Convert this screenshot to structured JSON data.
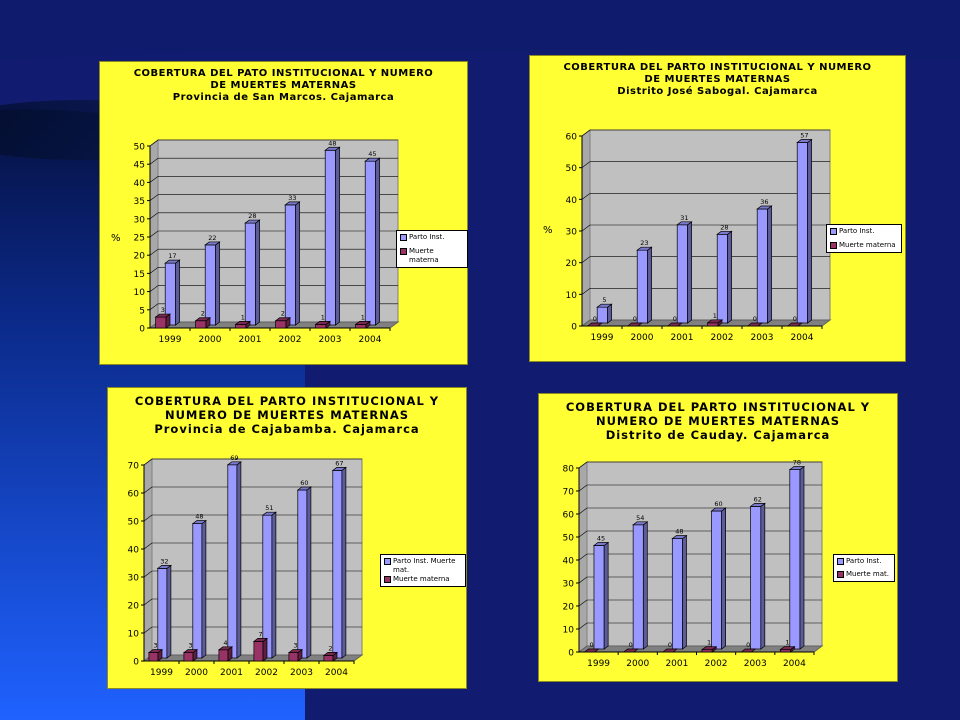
{
  "colors": {
    "panel_bg": "#ffff33",
    "plot_bg": "#c0c0c0",
    "floor": "#808080",
    "series_1": "#9999ff",
    "series_2": "#993366"
  },
  "charts": [
    {
      "title_lines": [
        "COBERTURA DEL PATO INSTITUCIONAL Y NUMERO",
        "DE MUERTES MATERNAS",
        "Provincia de San Marcos. Cajamarca"
      ],
      "ylabel": "%",
      "legend": [
        "Parto Inst.",
        "Muerte materna"
      ]
    },
    {
      "title_lines": [
        "COBERTURA DEL PARTO INSTITUCIONAL Y NUMERO",
        "DE MUERTES MATERNAS",
        "Distrito José Sabogal. Cajamarca"
      ],
      "ylabel": "%",
      "legend": [
        "Parto Inst.",
        "Muerte materna"
      ]
    },
    {
      "title_lines": [
        "COBERTURA DEL PARTO INSTITUCIONAL Y",
        "NUMERO DE MUERTES MATERNAS",
        "Provincia de Cajabamba. Cajamarca"
      ],
      "ylabel": "",
      "legend": [
        "Parto Inst. Muerte mat.",
        "Muerte materna"
      ]
    },
    {
      "title_lines": [
        "COBERTURA DEL PARTO INSTITUCIONAL Y",
        "NUMERO DE MUERTES MATERNAS",
        "Distrito de Cauday. Cajamarca"
      ],
      "ylabel": "",
      "legend": [
        "Parto Inst.",
        "Muerte mat."
      ]
    }
  ],
  "chart_data": [
    {
      "type": "bar",
      "title": "COBERTURA DEL PATO INSTITUCIONAL Y NUMERO DE MUERTES MATERNAS Provincia de San Marcos. Cajamarca",
      "categories": [
        "1999",
        "2000",
        "2001",
        "2002",
        "2003",
        "2004"
      ],
      "series": [
        {
          "name": "Parto Inst.",
          "values": [
            17,
            22,
            28,
            33,
            48,
            45
          ]
        },
        {
          "name": "Muerte materna",
          "values": [
            3,
            2,
            1,
            2,
            1,
            1
          ]
        }
      ],
      "ylabel": "%",
      "ylim": [
        0,
        50
      ],
      "yticks": [
        0,
        5,
        10,
        15,
        20,
        25,
        30,
        35,
        40,
        45,
        50
      ]
    },
    {
      "type": "bar",
      "title": "COBERTURA DEL PARTO INSTITUCIONAL Y NUMERO DE MUERTES MATERNAS Distrito José Sabogal. Cajamarca",
      "categories": [
        "1999",
        "2000",
        "2001",
        "2002",
        "2003",
        "2004"
      ],
      "series": [
        {
          "name": "Parto Inst.",
          "values": [
            5,
            23,
            31,
            28,
            36,
            57
          ]
        },
        {
          "name": "Muerte materna",
          "values": [
            0,
            0,
            0,
            1,
            0,
            0
          ]
        }
      ],
      "ylabel": "%",
      "ylim": [
        0,
        60
      ],
      "yticks": [
        0,
        10,
        20,
        30,
        40,
        50,
        60
      ]
    },
    {
      "type": "bar",
      "title": "COBERTURA DEL PARTO INSTITUCIONAL Y NUMERO DE MUERTES MATERNAS Provincia de Cajabamba. Cajamarca",
      "categories": [
        "1999",
        "2000",
        "2001",
        "2002",
        "2003",
        "2004"
      ],
      "series": [
        {
          "name": "Parto Inst. Muerte mat.",
          "values": [
            32,
            48,
            69,
            51,
            60,
            67
          ]
        },
        {
          "name": "Muerte materna",
          "values": [
            3,
            3,
            4,
            7,
            3,
            2
          ]
        }
      ],
      "ylim": [
        0,
        70
      ],
      "yticks": [
        0,
        10,
        20,
        30,
        40,
        50,
        60,
        70
      ]
    },
    {
      "type": "bar",
      "title": "COBERTURA DEL PARTO INSTITUCIONAL Y NUMERO DE MUERTES MATERNAS Distrito de Cauday. Cajamarca",
      "categories": [
        "1999",
        "2000",
        "2001",
        "2002",
        "2003",
        "2004"
      ],
      "series": [
        {
          "name": "Parto Inst.",
          "values": [
            45,
            54,
            48,
            60,
            62,
            78
          ]
        },
        {
          "name": "Muerte mat.",
          "values": [
            0,
            0,
            0,
            1,
            0,
            1
          ]
        }
      ],
      "ylim": [
        0,
        80
      ],
      "yticks": [
        0,
        10,
        20,
        30,
        40,
        50,
        60,
        70,
        80
      ]
    }
  ]
}
